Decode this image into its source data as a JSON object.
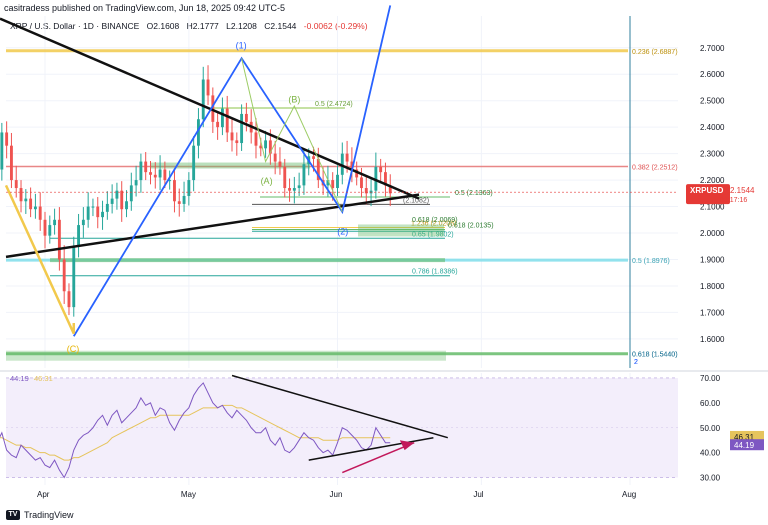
{
  "header": {
    "publisher": "casitradess published on TradingView.com, Jun 18, 2025 09:42 UTC-5"
  },
  "legend": {
    "symbol": "XRP / U.S. Dollar · 1D · BINANCE",
    "open": "O2.1608",
    "high": "H2.1777",
    "low": "L2.1208",
    "close": "C2.1544",
    "change": "-0.0062 (-0.29%)"
  },
  "price_badge": {
    "ticker": "XRPUSD",
    "price": "2.1544",
    "countdown": "09:17:16"
  },
  "footer": {
    "brand": "TradingView"
  },
  "colors": {
    "up": "#26a69a",
    "down": "#ef5350",
    "gold": "#f2c94c",
    "blue": "#2962ff",
    "teal": "#2f7f9e",
    "green_band": "#66bb6a",
    "rsi": "#7e57c2",
    "rsi_ma": "#e6c45c"
  },
  "chart_data": [
    {
      "type": "candlestick",
      "title": "XRP / U.S. Dollar · 1D · BINANCE",
      "ylim": [
        1.49,
        2.82
      ],
      "y_ticks": [
        2.7,
        2.6,
        2.5,
        2.4,
        2.3,
        2.2,
        2.1,
        2.0,
        1.9,
        1.8,
        1.7,
        1.6
      ],
      "x_ticks": [
        "Apr",
        "May",
        "Jun",
        "Jul",
        "Aug"
      ],
      "start_date": "2025-03-17",
      "last_date": "2025-06-18",
      "closes": [
        2.34,
        2.4,
        2.36,
        2.31,
        2.3,
        2.24,
        2.38,
        2.33,
        2.2,
        2.17,
        2.12,
        2.13,
        2.09,
        2.1,
        2.05,
        1.99,
        2.03,
        2.05,
        1.9,
        1.78,
        1.72,
        1.95,
        2.03,
        2.05,
        2.1,
        2.1,
        2.06,
        2.08,
        2.11,
        2.13,
        2.16,
        2.09,
        2.12,
        2.18,
        2.2,
        2.27,
        2.23,
        2.22,
        2.21,
        2.24,
        2.2,
        2.2,
        2.12,
        2.11,
        2.14,
        2.2,
        2.33,
        2.43,
        2.58,
        2.52,
        2.42,
        2.4,
        2.47,
        2.38,
        2.35,
        2.34,
        2.45,
        2.42,
        2.38,
        2.33,
        2.32,
        2.35,
        2.3,
        2.27,
        2.25,
        2.17,
        2.16,
        2.17,
        2.18,
        2.26,
        2.29,
        2.28,
        2.2,
        2.18,
        2.2,
        2.17,
        2.22,
        2.3,
        2.27,
        2.24,
        2.21,
        2.17,
        2.15,
        2.16,
        2.25,
        2.23,
        2.18,
        2.15
      ],
      "fib_levels": [
        {
          "label": "0.236 (2.6887)",
          "value": 2.6887
        },
        {
          "label": "0.382 (2.2512)",
          "value": 2.2512
        },
        {
          "label": "0.5 (1.8976)",
          "value": 1.8976
        },
        {
          "label": "0.618 (1.5440)",
          "value": 1.544
        },
        {
          "label": "0.5 (2.4724)",
          "value": 2.4724
        },
        {
          "label": "0.5 (2.1363)",
          "value": 2.1363
        },
        {
          "label": "1.236 (2.0208)",
          "value": 2.0208
        },
        {
          "label": "0.618 (2.0135)",
          "value": 2.0135
        },
        {
          "label": "0.618 (2.0069)",
          "value": 2.0069
        },
        {
          "label": "0.65 (1.9802)",
          "value": 1.9802
        },
        {
          "label": "0.786 (1.8386)",
          "value": 1.8386
        },
        {
          "label": "(2.1082)",
          "value": 2.1082
        }
      ],
      "wave_labels": [
        {
          "label": "(1)",
          "value": 2.66
        },
        {
          "label": "(B)",
          "value": 2.47
        },
        {
          "label": "(A)",
          "value": 2.2
        },
        {
          "label": "(2)",
          "value": 2.01
        },
        {
          "label": "(C)",
          "value": 1.6
        }
      ],
      "extra_labels": [
        "2"
      ]
    },
    {
      "type": "line",
      "title": "RSI",
      "ylim": [
        27,
        72
      ],
      "y_ticks": [
        70.0,
        60.0,
        50.0,
        40.0,
        30.0
      ],
      "values_label": "44.19",
      "ma_label": "46.31",
      "series": [
        {
          "name": "44.19",
          "values": [
            50,
            53,
            47,
            42,
            45,
            44,
            48,
            41,
            39,
            38,
            43,
            41,
            39,
            37,
            38,
            35,
            34,
            37,
            33,
            30,
            34,
            41,
            45,
            47,
            48,
            50,
            53,
            55,
            51,
            55,
            57,
            52,
            54,
            56,
            58,
            62,
            59,
            60,
            55,
            58,
            57,
            52,
            49,
            53,
            56,
            58,
            63,
            66,
            68,
            64,
            60,
            58,
            59,
            56,
            54,
            57,
            55,
            53,
            50,
            48,
            48,
            50,
            45,
            43,
            46,
            41,
            40,
            42,
            45,
            48,
            46,
            45,
            42,
            40,
            41,
            39,
            44,
            50,
            49,
            47,
            45,
            42,
            41,
            43,
            50,
            47,
            44,
            44
          ]
        },
        {
          "name": "46.31",
          "values": [
            48,
            48,
            48,
            47,
            47,
            46,
            46,
            45,
            44,
            43,
            43,
            42,
            42,
            41,
            40,
            40,
            39,
            39,
            38,
            37,
            37,
            38,
            38,
            39,
            40,
            41,
            42,
            43,
            44,
            46,
            47,
            48,
            49,
            50,
            51,
            52,
            53,
            54,
            54,
            55,
            55,
            55,
            55,
            55,
            55,
            55,
            56,
            57,
            58,
            58,
            58,
            58,
            59,
            59,
            59,
            58,
            58,
            57,
            56,
            55,
            54,
            53,
            52,
            51,
            50,
            49,
            48,
            47,
            46,
            46,
            46,
            46,
            46,
            45,
            45,
            45,
            45,
            46,
            46,
            46,
            46,
            46,
            46,
            46,
            46,
            46,
            46,
            46
          ]
        }
      ]
    }
  ]
}
